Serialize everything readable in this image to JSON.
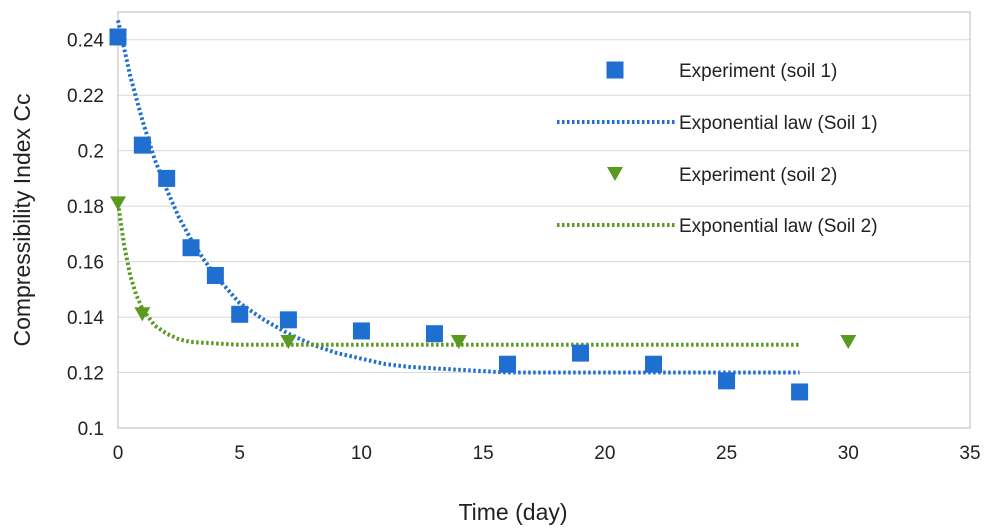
{
  "chart_data": {
    "type": "scatter",
    "title": "",
    "xlabel": "Time (day)",
    "ylabel": "Compressibility Index Cc",
    "xlim": [
      0,
      35
    ],
    "ylim": [
      0.1,
      0.25
    ],
    "x_ticks": [
      0,
      5,
      10,
      15,
      20,
      25,
      30,
      35
    ],
    "y_ticks": [
      0.1,
      0.12,
      0.14,
      0.16,
      0.18,
      0.2,
      0.22,
      0.24
    ],
    "x_tick_labels": [
      "0",
      "5",
      "10",
      "15",
      "20",
      "25",
      "30",
      "35"
    ],
    "y_tick_labels": [
      "0.1",
      "0.12",
      "0.14",
      "0.16",
      "0.18",
      "0.2",
      "0.22",
      "0.24"
    ],
    "grid": "horizontal",
    "legend_position": "top-right",
    "series": [
      {
        "name": "Experiment (soil 1)",
        "kind": "scatter",
        "marker": "square",
        "color": "#1f6fd1",
        "x": [
          0,
          1,
          2,
          3,
          4,
          5,
          7,
          10,
          13,
          16,
          19,
          22,
          25,
          28
        ],
        "y": [
          0.241,
          0.202,
          0.19,
          0.165,
          0.155,
          0.141,
          0.139,
          0.135,
          0.134,
          0.123,
          0.127,
          0.123,
          0.117,
          0.113
        ]
      },
      {
        "name": "Exponential law (Soil 1)",
        "kind": "line",
        "style": "dotted",
        "color": "#1f6fd1",
        "x": [
          0,
          0.5,
          1,
          1.5,
          2,
          2.5,
          3,
          3.5,
          4,
          4.5,
          5,
          6,
          7,
          8,
          9,
          10,
          11,
          12,
          14,
          16,
          18,
          20,
          22,
          24,
          26,
          28
        ],
        "y": [
          0.247,
          0.227,
          0.211,
          0.197,
          0.186,
          0.176,
          0.168,
          0.161,
          0.155,
          0.15,
          0.145,
          0.139,
          0.134,
          0.13,
          0.127,
          0.125,
          0.123,
          0.122,
          0.121,
          0.12,
          0.12,
          0.12,
          0.12,
          0.12,
          0.12,
          0.12
        ]
      },
      {
        "name": "Experiment (soil 2)",
        "kind": "scatter",
        "marker": "triangle-down",
        "color": "#5a9a1e",
        "x": [
          0,
          1,
          7,
          14,
          30
        ],
        "y": [
          0.181,
          0.141,
          0.131,
          0.131,
          0.131
        ]
      },
      {
        "name": "Exponential law (Soil 2)",
        "kind": "line",
        "style": "dotted",
        "color": "#5a9a1e",
        "x": [
          0,
          0.25,
          0.5,
          0.75,
          1,
          1.5,
          2,
          2.5,
          3,
          4,
          5,
          6,
          8,
          10,
          14,
          18,
          22,
          26,
          28
        ],
        "y": [
          0.181,
          0.166,
          0.155,
          0.148,
          0.143,
          0.137,
          0.134,
          0.132,
          0.131,
          0.1305,
          0.13,
          0.13,
          0.13,
          0.13,
          0.13,
          0.13,
          0.13,
          0.13,
          0.13
        ]
      }
    ]
  }
}
